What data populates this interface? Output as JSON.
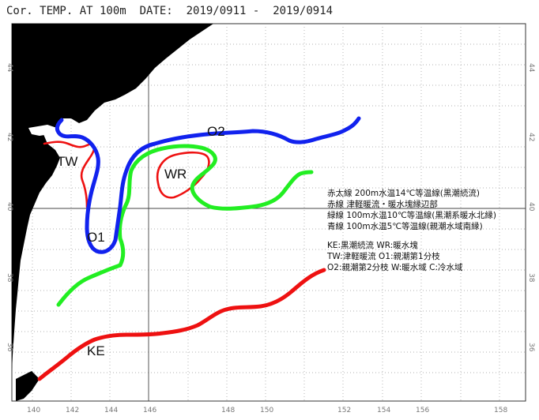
{
  "header": {
    "title": "Cor. TEMP. AT 100m",
    "date_label": "DATE:",
    "date_start": "2019/0911",
    "date_sep": "-",
    "date_end": "2019/0914"
  },
  "axes": {
    "lon_ticks": [
      "140",
      "142",
      "144",
      "146",
      "148",
      "150",
      "152",
      "154",
      "156",
      "158"
    ],
    "lat_ticks": [
      "44",
      "42",
      "40",
      "38",
      "36"
    ]
  },
  "features": {
    "tw": "TW",
    "wr": "WR",
    "o1": "O1",
    "o2": "O2",
    "ke": "KE"
  },
  "legend": {
    "lines": [
      "赤太線 200m水温14℃等温線(黒潮続流)",
      "赤線 津軽暖流・暖水塊縁辺部",
      "緑線 100m水温10℃等温線(黒潮系暖水北縁)",
      "青線 100m水温5℃等温線(親潮水域南縁)"
    ],
    "abbrev": [
      "KE:黒潮続流  WR:暖水塊",
      "TW:津軽暖流  O1:親潮第1分枝",
      "O2:親潮第2分枝  W:暖水域  C:冷水域"
    ]
  },
  "colors": {
    "land": "#000000",
    "red": "#ee1111",
    "green": "#22ee22",
    "blue": "#1122ee",
    "grid": "#888888"
  }
}
